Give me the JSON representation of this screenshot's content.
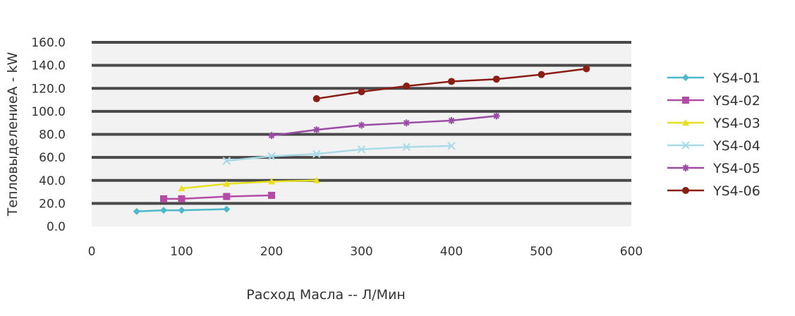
{
  "chart_data": {
    "type": "line",
    "title": "",
    "xlabel": "Расход Масла -- Л/Мин",
    "ylabel": "ТепловыделениеA - kW",
    "xlim": [
      0,
      600
    ],
    "ylim": [
      0,
      160
    ],
    "x_ticks": [
      0,
      100,
      200,
      300,
      400,
      500,
      600
    ],
    "x_tick_labels": [
      "0",
      "100",
      "200",
      "300",
      "400",
      "500",
      "600"
    ],
    "y_ticks": [
      0,
      20,
      40,
      60,
      80,
      100,
      120,
      140,
      160
    ],
    "y_tick_labels": [
      "0.0",
      "20.0",
      "40.0",
      "60.0",
      "80.0",
      "100.0",
      "120.0",
      "140.0",
      "160.0"
    ],
    "grid": true,
    "legend_position": "right",
    "series": [
      {
        "name": "YS4-01",
        "color": "#4db8c7",
        "marker": "diamond",
        "x": [
          50,
          80,
          100,
          150
        ],
        "y": [
          13,
          14,
          14,
          15
        ]
      },
      {
        "name": "YS4-02",
        "color": "#b44ca7",
        "marker": "square",
        "x": [
          80,
          100,
          150,
          200
        ],
        "y": [
          24,
          24,
          26,
          27
        ]
      },
      {
        "name": "YS4-03",
        "color": "#e8e020",
        "marker": "triangle",
        "x": [
          100,
          150,
          200,
          250
        ],
        "y": [
          33,
          37,
          39,
          40
        ]
      },
      {
        "name": "YS4-04",
        "color": "#a9dbe6",
        "marker": "x",
        "x": [
          150,
          200,
          250,
          300,
          350,
          400
        ],
        "y": [
          57,
          61,
          63,
          67,
          69,
          70
        ]
      },
      {
        "name": "YS4-05",
        "color": "#9b4aa6",
        "marker": "star",
        "x": [
          200,
          250,
          300,
          350,
          400,
          450
        ],
        "y": [
          79,
          84,
          88,
          90,
          92,
          96
        ]
      },
      {
        "name": "YS4-06",
        "color": "#8b1e14",
        "marker": "circle",
        "x": [
          250,
          300,
          350,
          400,
          450,
          500,
          550
        ],
        "y": [
          111,
          117,
          122,
          126,
          128,
          132,
          137
        ]
      }
    ]
  }
}
